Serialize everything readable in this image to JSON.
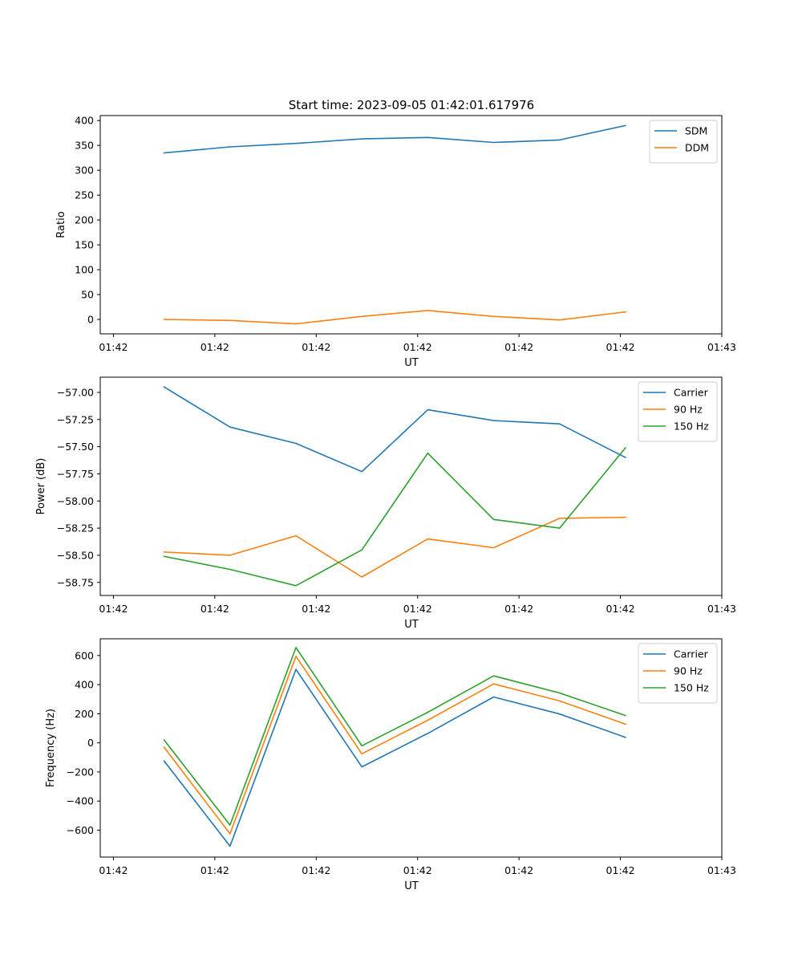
{
  "figure_title": "Start time: 2023-09-05 01:42:01.617976",
  "colors": {
    "blue": "#1f77b4",
    "orange": "#ff7f0e",
    "green": "#2ca02c",
    "axis": "#000000"
  },
  "chart_data": [
    {
      "type": "line",
      "title": "Start time: 2023-09-05 01:42:01.617976",
      "xlabel": "UT",
      "ylabel": "Ratio",
      "x": [
        0.5,
        1.15,
        1.8,
        2.45,
        3.1,
        3.75,
        4.4,
        5.05
      ],
      "xlim": [
        -0.13,
        6.0
      ],
      "xticks": [
        0,
        1,
        2,
        3,
        4,
        5,
        6
      ],
      "xticklabels": [
        "01:42",
        "01:42",
        "01:42",
        "01:42",
        "01:42",
        "01:42",
        "01:43"
      ],
      "ylim": [
        -29,
        410
      ],
      "yticks": [
        0,
        50,
        100,
        150,
        200,
        250,
        300,
        350,
        400
      ],
      "yticklabels": [
        "0",
        "50",
        "100",
        "150",
        "200",
        "250",
        "300",
        "350",
        "400"
      ],
      "legend": "top-right",
      "series": [
        {
          "name": "SDM",
          "color": "#1f77b4",
          "values": [
            335,
            347,
            354,
            363,
            366,
            356,
            361,
            390
          ]
        },
        {
          "name": "DDM",
          "color": "#ff7f0e",
          "values": [
            0,
            -2,
            -9,
            6,
            18,
            6,
            -1,
            15
          ]
        }
      ]
    },
    {
      "type": "line",
      "xlabel": "UT",
      "ylabel": "Power (dB)",
      "x": [
        0.5,
        1.15,
        1.8,
        2.45,
        3.1,
        3.75,
        4.4,
        5.05
      ],
      "xlim": [
        -0.13,
        6.0
      ],
      "xticks": [
        0,
        1,
        2,
        3,
        4,
        5,
        6
      ],
      "xticklabels": [
        "01:42",
        "01:42",
        "01:42",
        "01:42",
        "01:42",
        "01:42",
        "01:43"
      ],
      "ylim": [
        -58.87,
        -56.86
      ],
      "yticks": [
        -57.0,
        -57.25,
        -57.5,
        -57.75,
        -58.0,
        -58.25,
        -58.5,
        -58.75
      ],
      "yticklabels": [
        "−57.00",
        "−57.25",
        "−57.50",
        "−57.75",
        "−58.00",
        "−58.25",
        "−58.50",
        "−58.75"
      ],
      "legend": "top-right",
      "series": [
        {
          "name": "Carrier",
          "color": "#1f77b4",
          "values": [
            -56.95,
            -57.32,
            -57.47,
            -57.73,
            -57.16,
            -57.26,
            -57.29,
            -57.6
          ]
        },
        {
          "name": "90 Hz",
          "color": "#ff7f0e",
          "values": [
            -58.47,
            -58.5,
            -58.32,
            -58.7,
            -58.35,
            -58.43,
            -58.16,
            -58.15
          ]
        },
        {
          "name": "150 Hz",
          "color": "#2ca02c",
          "values": [
            -58.51,
            -58.63,
            -58.78,
            -58.45,
            -57.56,
            -58.17,
            -58.25,
            -57.51
          ]
        }
      ]
    },
    {
      "type": "line",
      "xlabel": "UT",
      "ylabel": "Frequency (Hz)",
      "x": [
        0.5,
        1.15,
        1.8,
        2.45,
        3.1,
        3.75,
        4.4,
        5.05
      ],
      "xlim": [
        -0.13,
        6.0
      ],
      "xticks": [
        0,
        1,
        2,
        3,
        4,
        5,
        6
      ],
      "xticklabels": [
        "01:42",
        "01:42",
        "01:42",
        "01:42",
        "01:42",
        "01:42",
        "01:43"
      ],
      "ylim": [
        -785,
        715
      ],
      "yticks": [
        600,
        400,
        200,
        0,
        -200,
        -400,
        -600
      ],
      "yticklabels": [
        "600",
        "400",
        "200",
        "0",
        "−200",
        "−400",
        "−600"
      ],
      "legend": "top-right",
      "series": [
        {
          "name": "Carrier",
          "color": "#1f77b4",
          "values": [
            -125,
            -710,
            505,
            -165,
            65,
            315,
            198,
            38
          ]
        },
        {
          "name": "90 Hz",
          "color": "#ff7f0e",
          "values": [
            -30,
            -625,
            595,
            -75,
            155,
            405,
            288,
            128
          ]
        },
        {
          "name": "150 Hz",
          "color": "#2ca02c",
          "values": [
            20,
            -565,
            655,
            -20,
            210,
            460,
            343,
            188
          ]
        }
      ]
    }
  ]
}
